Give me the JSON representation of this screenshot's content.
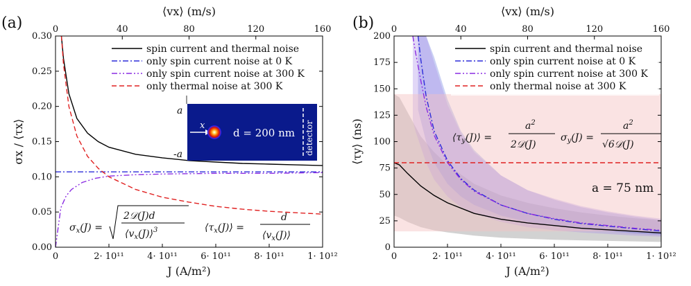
{
  "chart_data": [
    {
      "panel": "(a)",
      "type": "line",
      "xlabel": "J (A/m²)",
      "ylabel": "σx / ⟨τx⟩",
      "top_xlabel": "⟨vx⟩ (m/s)",
      "xlim": [
        0,
        1000000000000.0
      ],
      "ylim": [
        0,
        0.3
      ],
      "xticks": [
        0,
        200000000000.0,
        400000000000.0,
        600000000000.0,
        800000000000.0,
        1000000000000.0
      ],
      "xtick_labels": [
        "0",
        "2· 10¹¹",
        "4· 10¹¹",
        "6· 10¹¹",
        "8· 10¹¹",
        "1· 10¹²"
      ],
      "yticks": [
        0,
        0.05,
        0.1,
        0.15,
        0.2,
        0.25,
        0.3
      ],
      "ytick_labels": [
        "0.00",
        "0.05",
        "0.10",
        "0.15",
        "0.20",
        "0.25",
        "0.30"
      ],
      "top_xticks": [
        0,
        40,
        80,
        120,
        160
      ],
      "top_xtick_labels": [
        "0",
        "40",
        "80",
        "120",
        "160"
      ],
      "series": [
        {
          "name": "spin current and thermal noise",
          "style": "solid",
          "color": "#000000",
          "x": [
            22000000000.0,
            30000000000.0,
            50000000000.0,
            80000000000.0,
            120000000000.0,
            160000000000.0,
            200000000000.0,
            300000000000.0,
            400000000000.0,
            500000000000.0,
            600000000000.0,
            700000000000.0,
            800000000000.0,
            900000000000.0,
            1000000000000.0
          ],
          "y": [
            0.3,
            0.268,
            0.218,
            0.183,
            0.162,
            0.15,
            0.142,
            0.132,
            0.127,
            0.123,
            0.121,
            0.119,
            0.118,
            0.117,
            0.116
          ]
        },
        {
          "name": "only spin current noise at 0 K",
          "style": "dashdot",
          "color": "#2b2bd9",
          "x": [
            0,
            1000000000000.0
          ],
          "y": [
            0.107,
            0.107
          ]
        },
        {
          "name": "only spin current noise at 300 K",
          "style": "dashdotdot",
          "color": "#8a2be2",
          "x": [
            0,
            20000000000.0,
            40000000000.0,
            60000000000.0,
            100000000000.0,
            150000000000.0,
            200000000000.0,
            300000000000.0,
            400000000000.0,
            600000000000.0,
            800000000000.0,
            1000000000000.0
          ],
          "y": [
            0.0,
            0.056,
            0.073,
            0.082,
            0.092,
            0.098,
            0.101,
            0.103,
            0.104,
            0.105,
            0.105,
            0.106
          ]
        },
        {
          "name": "only thermal noise at 300 K",
          "style": "dashed",
          "color": "#e02020",
          "x": [
            22000000000.0,
            30000000000.0,
            50000000000.0,
            80000000000.0,
            120000000000.0,
            160000000000.0,
            200000000000.0,
            300000000000.0,
            400000000000.0,
            500000000000.0,
            600000000000.0,
            700000000000.0,
            800000000000.0,
            900000000000.0,
            1000000000000.0
          ],
          "y": [
            0.3,
            0.26,
            0.2,
            0.158,
            0.129,
            0.112,
            0.1,
            0.082,
            0.071,
            0.064,
            0.058,
            0.054,
            0.051,
            0.049,
            0.047
          ]
        }
      ],
      "legend": "top-right",
      "inset": {
        "y_axis": "y",
        "x_axis": "x",
        "top": "a",
        "bottom": "-a",
        "distance": "d = 200 nm",
        "detector": "detector"
      },
      "equations": {
        "sigma": "σx(J) = √( 2𝒟(J)d / ⟨vx(J)⟩³ )",
        "tau": "⟨τx(J)⟩ = d / ⟨vx(J)⟩"
      }
    },
    {
      "panel": "(b)",
      "type": "line",
      "xlabel": "J (A/m²)",
      "ylabel": "⟨τy⟩ (ns)",
      "top_xlabel": "⟨vx⟩ (m/s)",
      "xlim": [
        0,
        1000000000000.0
      ],
      "ylim": [
        0,
        200
      ],
      "xticks": [
        0,
        200000000000.0,
        400000000000.0,
        600000000000.0,
        800000000000.0,
        1000000000000.0
      ],
      "xtick_labels": [
        "0",
        "2· 10¹¹",
        "4· 10¹¹",
        "6· 10¹¹",
        "8· 10¹¹",
        "1· 10¹²"
      ],
      "yticks": [
        0,
        25,
        50,
        75,
        100,
        125,
        150,
        175,
        200
      ],
      "ytick_labels": [
        "0",
        "25",
        "50",
        "75",
        "100",
        "125",
        "150",
        "175",
        "200"
      ],
      "top_xticks": [
        0,
        40,
        80,
        120,
        160
      ],
      "top_xtick_labels": [
        "0",
        "40",
        "80",
        "120",
        "160"
      ],
      "series": [
        {
          "name": "spin current and thermal noise",
          "style": "solid",
          "color": "#000000",
          "x": [
            0,
            20000000000.0,
            50000000000.0,
            100000000000.0,
            150000000000.0,
            200000000000.0,
            300000000000.0,
            400000000000.0,
            500000000000.0,
            600000000000.0,
            700000000000.0,
            800000000000.0,
            900000000000.0,
            1000000000000.0
          ],
          "y": [
            80,
            78,
            70,
            58,
            49,
            42,
            32,
            26.5,
            23,
            20.5,
            18,
            16.5,
            15,
            13.5
          ],
          "band_lower": [
            30,
            28,
            24,
            19,
            16,
            14,
            11,
            9,
            8,
            7,
            6.5,
            6,
            5.5,
            5
          ],
          "band_upper": [
            145,
            142,
            128,
            105,
            90,
            78,
            60,
            49,
            42,
            37,
            33,
            30,
            27.5,
            25.5
          ],
          "band_color": "#7f7f7f"
        },
        {
          "name": "only spin current noise at 0 K",
          "style": "dashdot",
          "color": "#2b2bd9",
          "x": [
            90000000000.0,
            100000000000.0,
            120000000000.0,
            150000000000.0,
            200000000000.0,
            250000000000.0,
            300000000000.0,
            400000000000.0,
            500000000000.0,
            600000000000.0,
            700000000000.0,
            800000000000.0,
            900000000000.0,
            1000000000000.0
          ],
          "y": [
            200,
            178,
            143,
            110,
            82,
            65,
            54,
            40,
            32,
            26.5,
            22.5,
            20,
            17.5,
            15.5
          ],
          "band_lower": [
            130,
            120,
            100,
            80,
            60,
            48,
            40,
            30,
            24,
            20,
            17,
            15,
            13,
            11.5
          ],
          "band_upper": [
            200,
            200,
            200,
            180,
            140,
            110,
            92,
            68,
            54,
            45,
            38,
            33,
            29,
            26
          ],
          "band_color": "#6b7be0"
        },
        {
          "name": "only spin current noise at 300 K",
          "style": "dashdotdot",
          "color": "#8a2be2",
          "x": [
            70000000000.0,
            80000000000.0,
            100000000000.0,
            120000000000.0,
            150000000000.0,
            200000000000.0,
            250000000000.0,
            300000000000.0,
            400000000000.0,
            500000000000.0,
            600000000000.0,
            700000000000.0,
            800000000000.0,
            900000000000.0,
            1000000000000.0
          ],
          "y": [
            200,
            185,
            158,
            133,
            106,
            80,
            64,
            53,
            40,
            32,
            27,
            23,
            20.5,
            18,
            16
          ],
          "band_lower": [
            120,
            110,
            95,
            80,
            64,
            48,
            38,
            32,
            24,
            19,
            16,
            14,
            12.5,
            11,
            10
          ],
          "band_upper": [
            200,
            200,
            200,
            200,
            175,
            135,
            108,
            90,
            68,
            54,
            46,
            39,
            34,
            30,
            27
          ],
          "band_color": "#a88be8"
        },
        {
          "name": "only thermal noise at 300 K",
          "style": "dashed",
          "color": "#e02020",
          "x": [
            0,
            1000000000000.0
          ],
          "y": [
            80,
            80
          ],
          "band_lower": [
            15,
            15
          ],
          "band_upper": [
            145,
            145
          ],
          "band_color": "#f3c0c0"
        }
      ],
      "legend": "top-right",
      "annotation": "a = 75 nm",
      "equations": {
        "tau": "⟨τy(J)⟩ = a² / 2𝒟(J)",
        "sigma": "σy(J) = a² / √6 𝒟(J)"
      }
    }
  ]
}
